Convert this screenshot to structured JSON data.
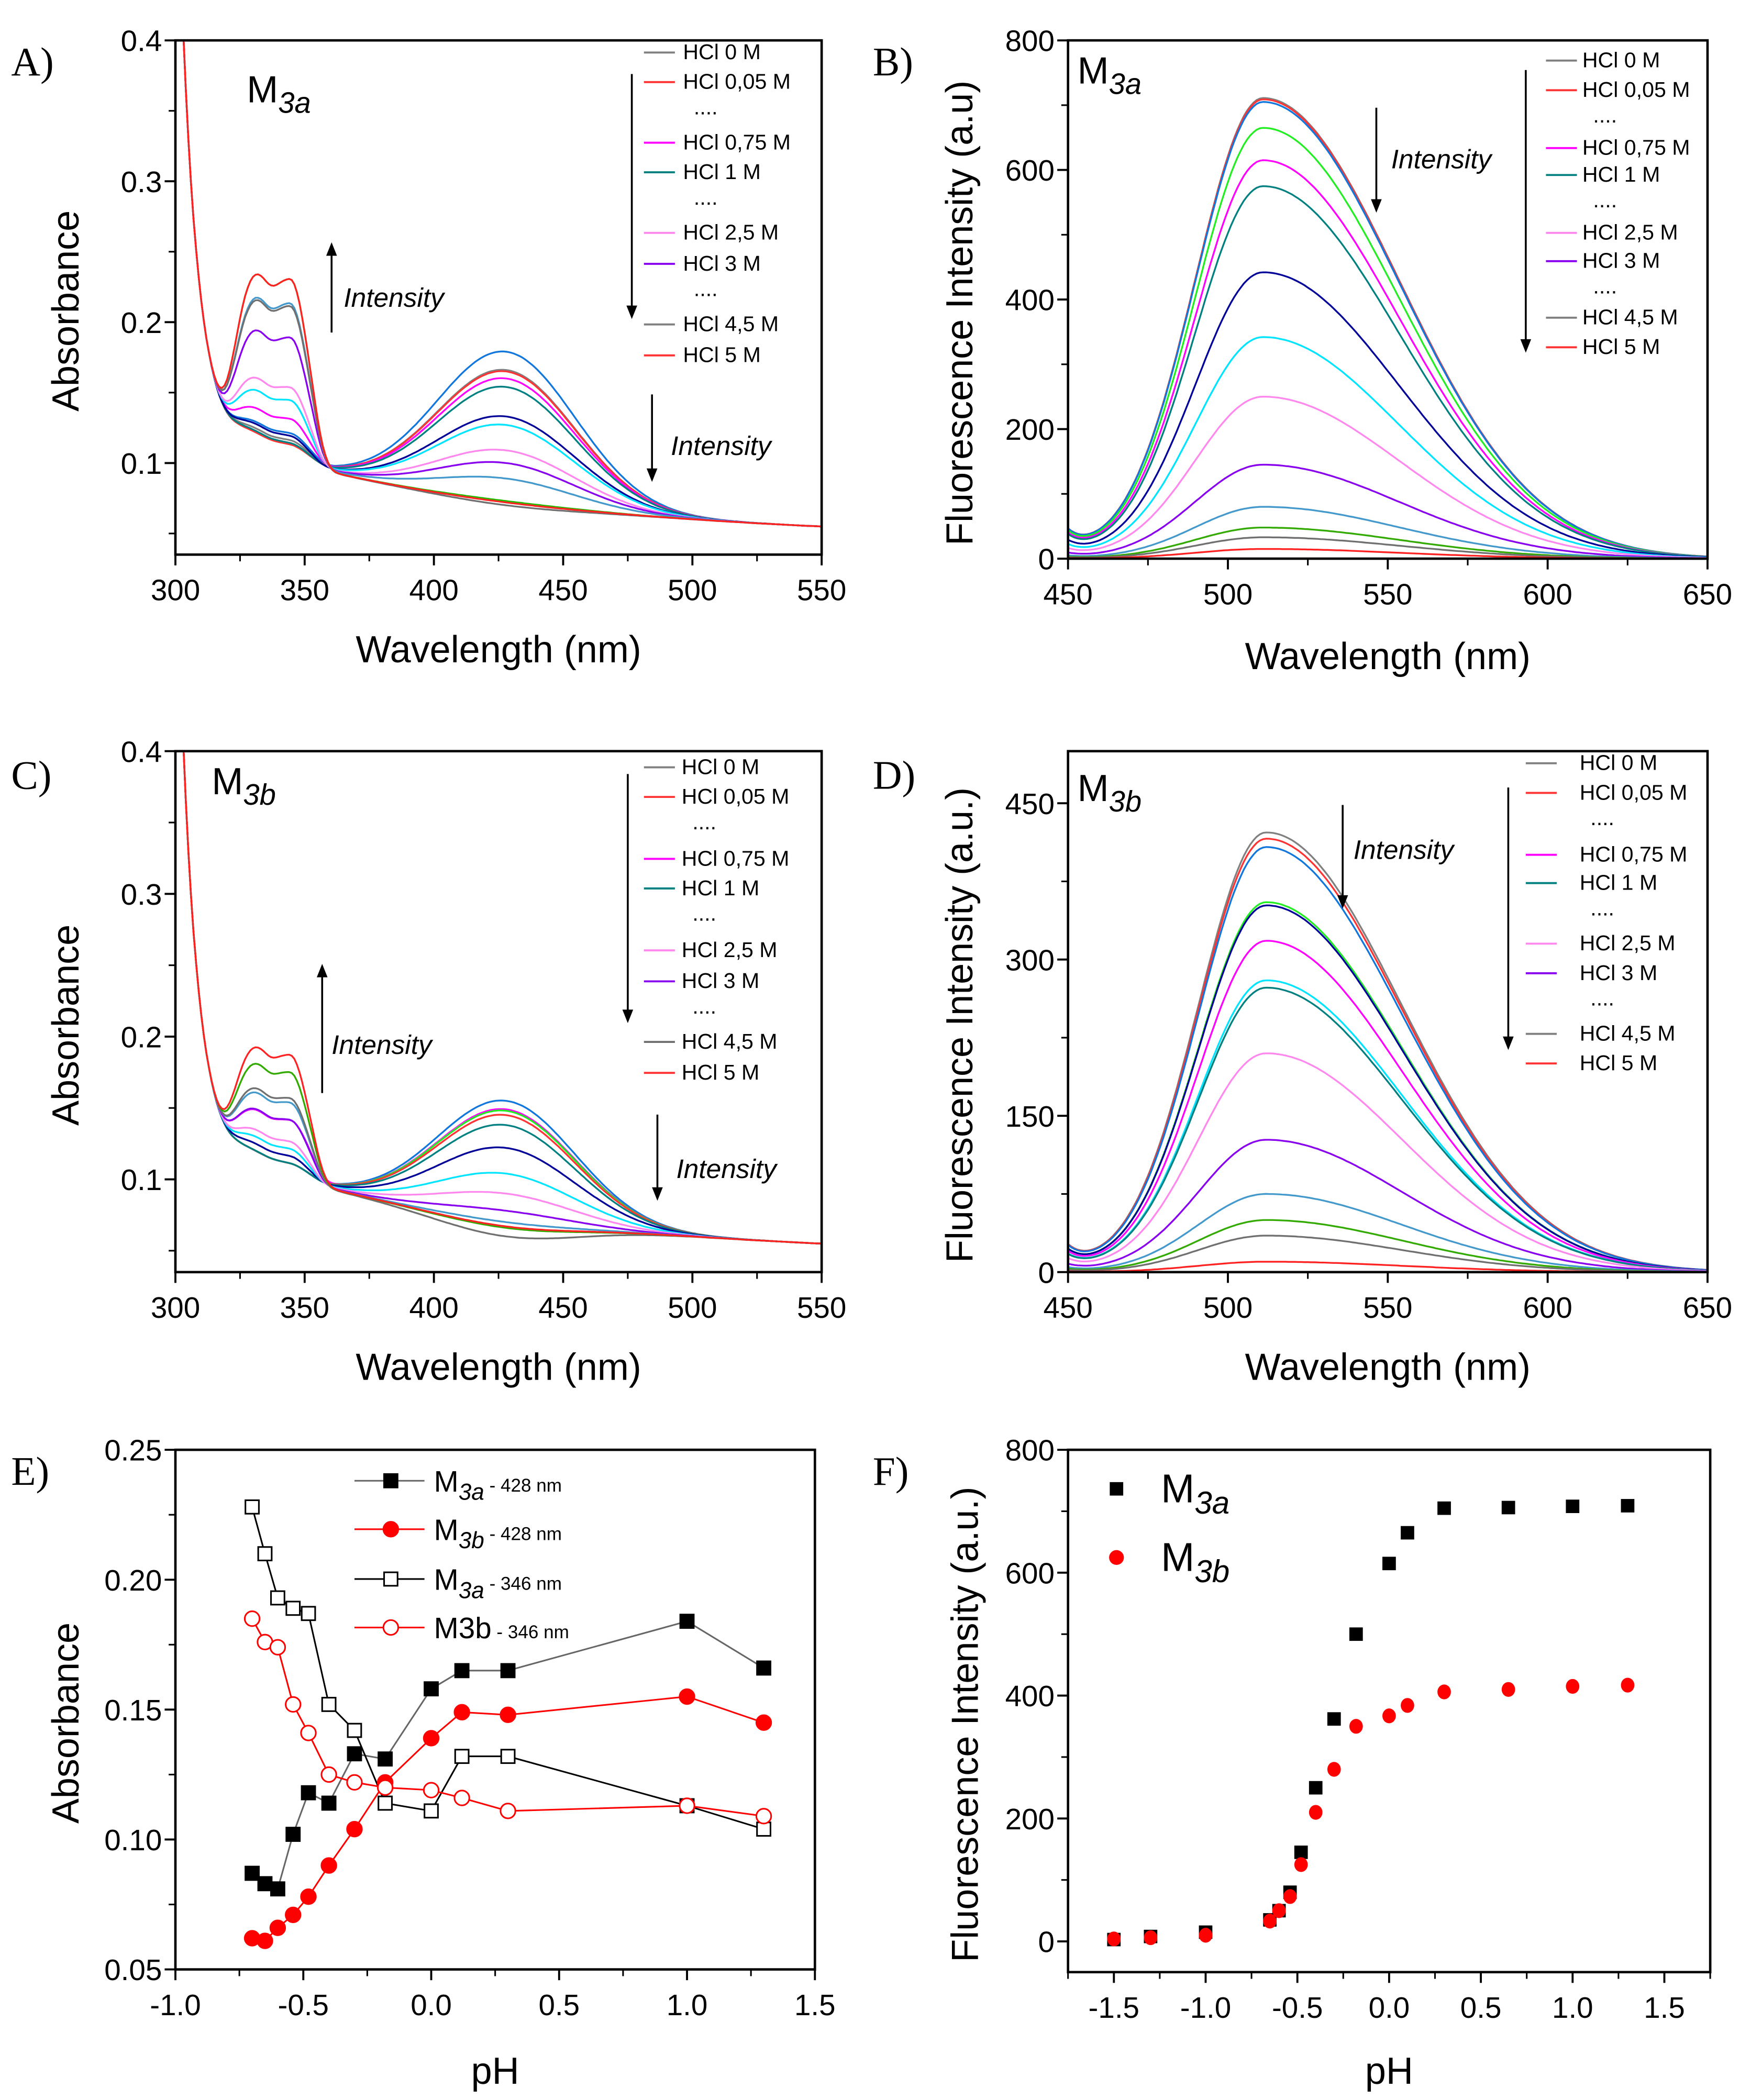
{
  "chart_data": [
    {
      "panel_label": "A)",
      "type": "line",
      "compound": {
        "main": "M",
        "sub": "3a"
      },
      "xlabel": "Wavelength (nm)",
      "ylabel": "Absorbance",
      "xlim": [
        300,
        550
      ],
      "ylim": [
        0.035,
        0.4
      ],
      "xticks": [
        300,
        350,
        400,
        450,
        500,
        550
      ],
      "yticks": [
        0.1,
        0.2,
        0.3,
        0.4
      ],
      "ytick_labels": [
        "0.1",
        "0.2",
        "0.3",
        "0.4"
      ],
      "grid": false,
      "legend_position": "top-right",
      "legend": [
        {
          "label": "HCl 0 M",
          "color": "#808080"
        },
        {
          "label": "HCl 0,05 M",
          "color": "#ff3333"
        },
        {
          "label": "....",
          "color": ""
        },
        {
          "label": "HCl 0,75 M",
          "color": "#ff00ff"
        },
        {
          "label": "HCl 1 M",
          "color": "#008080"
        },
        {
          "label": "....",
          "color": ""
        },
        {
          "label": "HCl 2,5 M",
          "color": "#ff88ee"
        },
        {
          "label": "HCl 3 M",
          "color": "#8800ee"
        },
        {
          "label": "....",
          "color": ""
        },
        {
          "label": "HCl 4,5 M",
          "color": "#808080"
        },
        {
          "label": "HCl 5 M",
          "color": "#ff3333"
        }
      ],
      "annotations": [
        {
          "text": "Intensity",
          "direction": "up"
        },
        {
          "text": "Intensity",
          "direction": "down"
        }
      ],
      "series": [
        {
          "color": "#1177dd",
          "abs_346": 0.12,
          "abs_428": 0.179
        },
        {
          "color": "#808080",
          "abs_346": 0.115,
          "abs_428": 0.166
        },
        {
          "color": "#ff3333",
          "abs_346": 0.112,
          "abs_428": 0.165
        },
        {
          "color": "#ff00ff",
          "abs_346": 0.13,
          "abs_428": 0.16
        },
        {
          "color": "#008080",
          "abs_346": 0.113,
          "abs_428": 0.154
        },
        {
          "color": "#000099",
          "abs_346": 0.118,
          "abs_428": 0.133
        },
        {
          "color": "#00e5ff",
          "abs_346": 0.143,
          "abs_428": 0.127
        },
        {
          "color": "#ff88ee",
          "abs_346": 0.152,
          "abs_428": 0.109
        },
        {
          "color": "#8800ee",
          "abs_346": 0.187,
          "abs_428": 0.1
        },
        {
          "color": "#4499cc",
          "abs_346": 0.211,
          "abs_428": 0.089
        },
        {
          "color": "#22bb00",
          "abs_346": 0.228,
          "abs_428": 0.073
        },
        {
          "color": "#707070",
          "abs_346": 0.209,
          "abs_428": 0.07
        },
        {
          "color": "#ff2222",
          "abs_346": 0.228,
          "abs_428": 0.072
        }
      ]
    },
    {
      "panel_label": "B)",
      "type": "line",
      "compound": {
        "main": "M",
        "sub": "3a"
      },
      "xlabel": "Wavelength (nm)",
      "ylabel": "Fluorescence Intensity (a.u)",
      "xlim": [
        450,
        650
      ],
      "ylim": [
        0,
        800
      ],
      "xticks": [
        450,
        500,
        550,
        600,
        650
      ],
      "yticks": [
        0,
        200,
        400,
        600,
        800
      ],
      "ytick_labels": [
        "0",
        "200",
        "400",
        "600",
        "800"
      ],
      "grid": false,
      "legend_position": "top-right",
      "legend": [
        {
          "label": "HCl 0 M",
          "color": "#808080"
        },
        {
          "label": "HCl 0,05 M",
          "color": "#ff3333"
        },
        {
          "label": "....",
          "color": ""
        },
        {
          "label": "HCl 0,75 M",
          "color": "#ff00ff"
        },
        {
          "label": "HCl 1 M",
          "color": "#008080"
        },
        {
          "label": "....",
          "color": ""
        },
        {
          "label": "HCl 2,5 M",
          "color": "#ff88ee"
        },
        {
          "label": "HCl 3 M",
          "color": "#8800ee"
        },
        {
          "label": "....",
          "color": ""
        },
        {
          "label": "HCl 4,5 M",
          "color": "#808080"
        },
        {
          "label": "HCl 5 M",
          "color": "#ff3333"
        }
      ],
      "annotations": [
        {
          "text": "Intensity",
          "direction": "down"
        }
      ],
      "peak_wavelength": 511,
      "series": [
        {
          "color": "#808080",
          "peak": 711
        },
        {
          "color": "#ff3333",
          "peak": 709
        },
        {
          "color": "#1177dd",
          "peak": 705
        },
        {
          "color": "#22ee22",
          "peak": 665
        },
        {
          "color": "#ff00ff",
          "peak": 615
        },
        {
          "color": "#008080",
          "peak": 575
        },
        {
          "color": "#000099",
          "peak": 442
        },
        {
          "color": "#00e5ff",
          "peak": 342
        },
        {
          "color": "#ff88ee",
          "peak": 250
        },
        {
          "color": "#8800ee",
          "peak": 145
        },
        {
          "color": "#4499cc",
          "peak": 80
        },
        {
          "color": "#33aa00",
          "peak": 48
        },
        {
          "color": "#707070",
          "peak": 33
        },
        {
          "color": "#ff2222",
          "peak": 15
        }
      ]
    },
    {
      "panel_label": "C)",
      "type": "line",
      "compound": {
        "main": "M",
        "sub": "3b"
      },
      "xlabel": "Wavelength (nm)",
      "ylabel": "Absorbance",
      "xlim": [
        300,
        550
      ],
      "ylim": [
        0.035,
        0.4
      ],
      "xticks": [
        300,
        350,
        400,
        450,
        500,
        550
      ],
      "yticks": [
        0.1,
        0.2,
        0.3,
        0.4
      ],
      "ytick_labels": [
        "0.1",
        "0.2",
        "0.3",
        "0.4"
      ],
      "grid": false,
      "legend_position": "top-right",
      "legend": [
        {
          "label": "HCl 0 M",
          "color": "#808080"
        },
        {
          "label": "HCl 0,05 M",
          "color": "#ff3333"
        },
        {
          "label": "....",
          "color": ""
        },
        {
          "label": "HCl 0,75 M",
          "color": "#ff00ff"
        },
        {
          "label": "HCl 1 M",
          "color": "#008080"
        },
        {
          "label": "....",
          "color": ""
        },
        {
          "label": "HCl 2,5 M",
          "color": "#ff88ee"
        },
        {
          "label": "HCl 3 M",
          "color": "#8800ee"
        },
        {
          "label": "....",
          "color": ""
        },
        {
          "label": "HCl 4,5 M",
          "color": "#707070"
        },
        {
          "label": "HCl 5 M",
          "color": "#ff3333"
        }
      ],
      "annotations": [
        {
          "text": "Intensity",
          "direction": "up"
        },
        {
          "text": "Intensity",
          "direction": "down"
        }
      ],
      "series": [
        {
          "color": "#1177dd",
          "abs_346": 0.11,
          "abs_428": 0.155
        },
        {
          "color": "#ff00ff",
          "abs_346": 0.14,
          "abs_428": 0.149
        },
        {
          "color": "#22ee22",
          "abs_346": 0.11,
          "abs_428": 0.148
        },
        {
          "color": "#ff3333",
          "abs_346": 0.11,
          "abs_428": 0.145
        },
        {
          "color": "#008080",
          "abs_346": 0.11,
          "abs_428": 0.138
        },
        {
          "color": "#000099",
          "abs_346": 0.115,
          "abs_428": 0.122
        },
        {
          "color": "#00e5ff",
          "abs_346": 0.12,
          "abs_428": 0.104
        },
        {
          "color": "#ff88ee",
          "abs_346": 0.125,
          "abs_428": 0.09
        },
        {
          "color": "#8800ee",
          "abs_346": 0.14,
          "abs_428": 0.078
        },
        {
          "color": "#4499cc",
          "abs_346": 0.152,
          "abs_428": 0.07
        },
        {
          "color": "#707070",
          "abs_346": 0.155,
          "abs_428": 0.06
        },
        {
          "color": "#33aa00",
          "abs_346": 0.173,
          "abs_428": 0.066
        },
        {
          "color": "#ff2222",
          "abs_346": 0.185,
          "abs_428": 0.067
        }
      ]
    },
    {
      "panel_label": "D)",
      "type": "line",
      "compound": {
        "main": "M",
        "sub": "3b"
      },
      "xlabel": "Wavelength (nm)",
      "ylabel": "Fluorescence Intensity (a.u.)",
      "xlim": [
        450,
        650
      ],
      "ylim": [
        0,
        500
      ],
      "xticks": [
        450,
        500,
        550,
        600,
        650
      ],
      "yticks": [
        0,
        150,
        300,
        450
      ],
      "ytick_labels": [
        "0",
        "150",
        "300",
        "450"
      ],
      "grid": false,
      "legend_position": "top-right",
      "legend": [
        {
          "label": "HCl 0 M",
          "color": "#808080"
        },
        {
          "label": "HCl 0,05 M",
          "color": "#ff3333"
        },
        {
          "label": "....",
          "color": ""
        },
        {
          "label": "HCl 0,75 M",
          "color": "#ff00ff"
        },
        {
          "label": "HCl 1 M",
          "color": "#008080"
        },
        {
          "label": "....",
          "color": ""
        },
        {
          "label": "HCl 2,5 M",
          "color": "#ff88ee"
        },
        {
          "label": "HCl 3 M",
          "color": "#8800ee"
        },
        {
          "label": "....",
          "color": ""
        },
        {
          "label": "HCl 4,5 M",
          "color": "#808080"
        },
        {
          "label": "HCl 5 M",
          "color": "#ff3333"
        }
      ],
      "annotations": [
        {
          "text": "Intensity",
          "direction": "down"
        }
      ],
      "peak_wavelength": 512,
      "series": [
        {
          "color": "#808080",
          "peak": 422
        },
        {
          "color": "#ff3333",
          "peak": 416
        },
        {
          "color": "#1177dd",
          "peak": 408
        },
        {
          "color": "#22ee22",
          "peak": 355
        },
        {
          "color": "#000099",
          "peak": 352
        },
        {
          "color": "#ff00ff",
          "peak": 318
        },
        {
          "color": "#00e5ff",
          "peak": 280
        },
        {
          "color": "#008080",
          "peak": 273
        },
        {
          "color": "#ff88ee",
          "peak": 210
        },
        {
          "color": "#8800ee",
          "peak": 127
        },
        {
          "color": "#4499cc",
          "peak": 75
        },
        {
          "color": "#33aa00",
          "peak": 50
        },
        {
          "color": "#707070",
          "peak": 35
        },
        {
          "color": "#ff2222",
          "peak": 10
        }
      ]
    },
    {
      "panel_label": "E)",
      "type": "line",
      "xlabel": "pH",
      "ylabel": "Absorbance",
      "xlim": [
        -1.0,
        1.5
      ],
      "ylim": [
        0.05,
        0.25
      ],
      "xticks": [
        -1.0,
        -0.5,
        0.0,
        0.5,
        1.0,
        1.5
      ],
      "xtick_labels": [
        "-1.0",
        "-0.5",
        "0.0",
        "0.5",
        "1.0",
        "1.5"
      ],
      "yticks": [
        0.05,
        0.1,
        0.15,
        0.2,
        0.25
      ],
      "ytick_labels": [
        "0.05",
        "0.10",
        "0.15",
        "0.20",
        "0.25"
      ],
      "grid": false,
      "legend_position": "top-center",
      "x": [
        -0.7,
        -0.65,
        -0.6,
        -0.54,
        -0.48,
        -0.4,
        -0.3,
        -0.18,
        0.0,
        0.12,
        0.3,
        1.0,
        1.3
      ],
      "series": [
        {
          "name_main": "M",
          "name_sub": "3a",
          "name_suffix": " - 428 nm",
          "marker": "square",
          "filled": true,
          "color": "#000000",
          "line_color": "#666666",
          "values": [
            0.087,
            0.083,
            0.081,
            0.102,
            0.118,
            0.114,
            0.133,
            0.131,
            0.158,
            0.165,
            0.165,
            0.184,
            0.166
          ]
        },
        {
          "name_main": "M",
          "name_sub": "3b",
          "name_suffix": " - 428 nm",
          "marker": "circle",
          "filled": true,
          "color": "#ff0000",
          "line_color": "#ff0000",
          "values": [
            0.062,
            0.061,
            0.066,
            0.071,
            0.078,
            0.09,
            0.104,
            0.122,
            0.139,
            0.149,
            0.148,
            0.155,
            0.145
          ]
        },
        {
          "name_main": "M",
          "name_sub": "3a",
          "name_suffix": " - 346 nm",
          "marker": "square",
          "filled": false,
          "color": "#000000",
          "line_color": "#000000",
          "values": [
            0.228,
            0.21,
            0.193,
            0.189,
            0.187,
            0.152,
            0.142,
            0.114,
            0.111,
            0.132,
            0.132,
            0.113,
            0.104
          ]
        },
        {
          "name_main": "M3b",
          "name_sub": "",
          "name_suffix": " - 346 nm",
          "marker": "circle",
          "filled": false,
          "color": "#ff0000",
          "line_color": "#ff0000",
          "values": [
            0.185,
            0.176,
            0.174,
            0.152,
            0.141,
            0.125,
            0.122,
            0.12,
            0.119,
            0.116,
            0.111,
            0.113,
            0.109
          ]
        }
      ]
    },
    {
      "panel_label": "F)",
      "type": "scatter",
      "xlabel": "pH",
      "ylabel": "Fluorescence Intensity (a.u.)",
      "xlim": [
        -1.75,
        1.75
      ],
      "ylim": [
        -50,
        800
      ],
      "xticks": [
        -1.5,
        -1.0,
        -0.5,
        0.0,
        0.5,
        1.0,
        1.5
      ],
      "xtick_labels": [
        "-1.5",
        "-1.0",
        "-0.5",
        "0.0",
        "0.5",
        "1.0",
        "1.5"
      ],
      "yticks": [
        0,
        200,
        400,
        600,
        800
      ],
      "ytick_labels": [
        "0",
        "200",
        "400",
        "600",
        "800"
      ],
      "grid": false,
      "legend_position": "top-left",
      "x": [
        -1.5,
        -1.3,
        -1.0,
        -0.65,
        -0.6,
        -0.54,
        -0.48,
        -0.4,
        -0.3,
        -0.18,
        0.0,
        0.1,
        0.3,
        0.65,
        1.0,
        1.3
      ],
      "series": [
        {
          "name_main": "M",
          "name_sub": "3a",
          "marker": "square",
          "color": "#000000",
          "values": [
            3,
            8,
            15,
            35,
            50,
            80,
            145,
            250,
            362,
            500,
            615,
            665,
            705,
            706,
            708,
            709
          ]
        },
        {
          "name_main": "M",
          "name_sub": "3b",
          "marker": "circle",
          "color": "#ff0000",
          "values": [
            4,
            6,
            10,
            33,
            50,
            73,
            125,
            210,
            280,
            350,
            367,
            384,
            406,
            410,
            415,
            417
          ]
        }
      ]
    }
  ]
}
